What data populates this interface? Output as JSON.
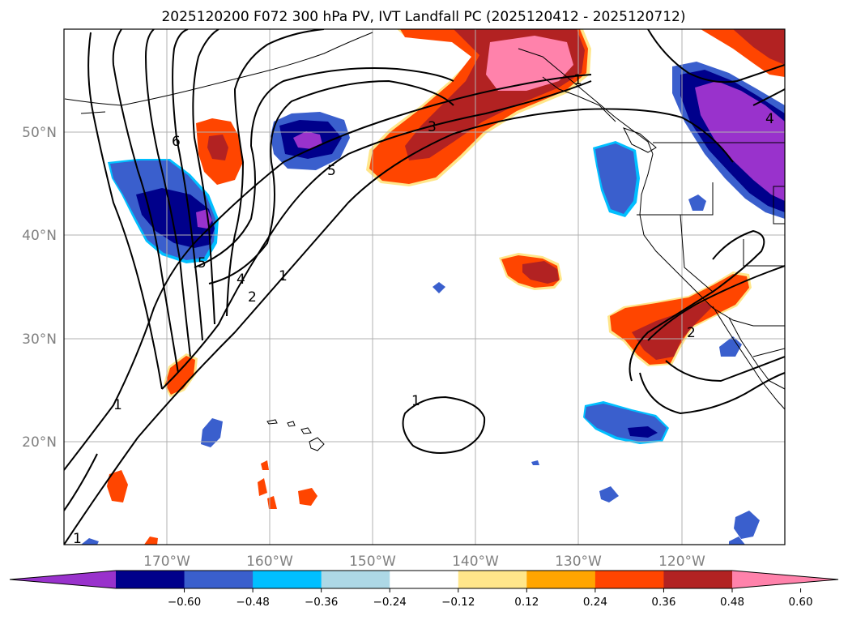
{
  "title": "2025120200 F072 300 hPa PV, IVT Landfall PC (2025120412 - 2025120712)",
  "lon_ticks": [
    "170°W",
    "160°W",
    "150°W",
    "140°W",
    "130°W",
    "120°W"
  ],
  "lat_ticks": [
    "50°N",
    "40°N",
    "30°N",
    "20°N"
  ],
  "colorbar": {
    "tick_labels": [
      "−0.60",
      "−0.48",
      "−0.36",
      "−0.24",
      "−0.12",
      "0.12",
      "0.24",
      "0.36",
      "0.48",
      "0.60"
    ],
    "colors": [
      "#9932cc",
      "#00008b",
      "#3a5fcd",
      "#00bfff",
      "#add8e6",
      "#ffffff",
      "#ffe68a",
      "#ffa500",
      "#ff4500",
      "#b22222",
      "#ff82ab"
    ]
  },
  "contour_labels": [
    "6",
    "5",
    "4",
    "5",
    "2",
    "1",
    "1",
    "3",
    "4",
    "2",
    "1",
    "1",
    "1"
  ],
  "map_extent": {
    "lon": [
      -180,
      -110
    ],
    "lat": [
      10,
      60
    ]
  }
}
